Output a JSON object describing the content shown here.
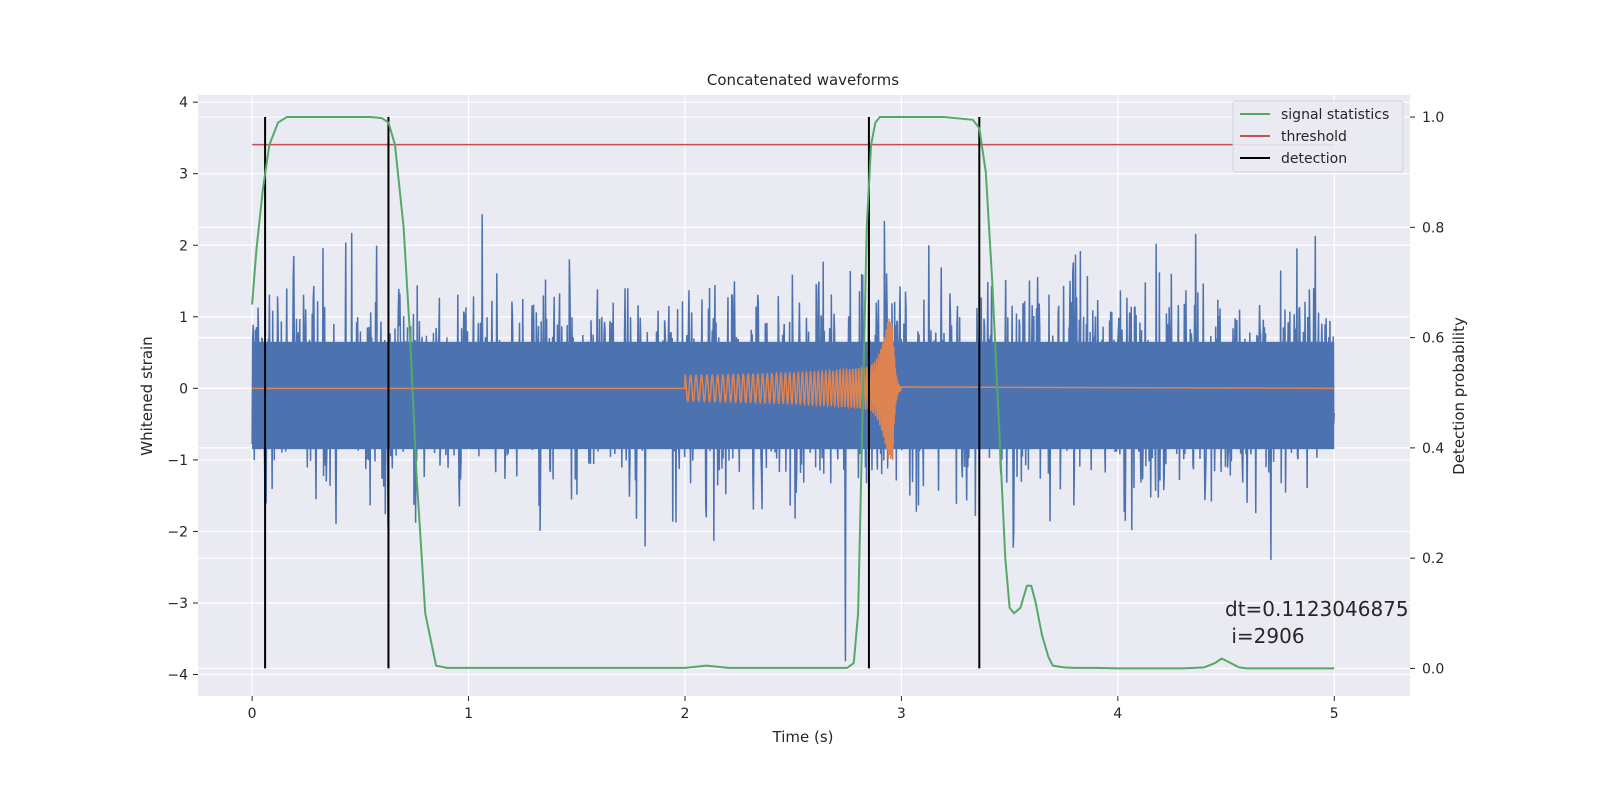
{
  "chart_data": {
    "type": "line",
    "title": "Concatenated waveforms",
    "xlabel": "Time (s)",
    "ylabel": "Whitened strain",
    "ylabel_right": "Detection probability",
    "xlim": [
      -0.25,
      5.35
    ],
    "ylim": [
      -4.3,
      4.1
    ],
    "ylim_right": [
      -0.05,
      1.04
    ],
    "xticks": [
      0,
      1,
      2,
      3,
      4,
      5
    ],
    "yticks": [
      -4,
      -3,
      -2,
      -1,
      0,
      1,
      2,
      3,
      4
    ],
    "yticks_right": [
      0.0,
      0.2,
      0.4,
      0.6,
      0.8,
      1.0
    ],
    "xtick_labels": [
      "0",
      "1",
      "2",
      "3",
      "4",
      "5"
    ],
    "ytick_labels": [
      "−4",
      "−3",
      "−2",
      "−1",
      "0",
      "1",
      "2",
      "3",
      "4"
    ],
    "ytick_labels_right": [
      "0.0",
      "0.2",
      "0.4",
      "0.6",
      "0.8",
      "1.0"
    ],
    "grid": true,
    "legend_position": "top-right",
    "colors": {
      "background": "#eaeaf2",
      "strain": "#4c72b0",
      "injection": "#dd8452",
      "signal_statistics": "#55a868",
      "threshold": "#c44e52",
      "detection": "#000000"
    },
    "series": [
      {
        "name": "",
        "role": "whitened-strain",
        "x_range": [
          0,
          5
        ],
        "envelope_amplitude": 3.6,
        "dense_band": [
          -0.85,
          0.65
        ]
      },
      {
        "name": "",
        "role": "injected-chirp",
        "x_start": 2.0,
        "x_merger": 2.96,
        "x_end": 3.0,
        "peak_amplitude": 1.0
      },
      {
        "name": "signal statistics",
        "axis": "right",
        "x": [
          0.0,
          0.02,
          0.05,
          0.08,
          0.12,
          0.16,
          0.2,
          0.3,
          0.4,
          0.5,
          0.55,
          0.6,
          0.63,
          0.66,
          0.7,
          0.73,
          0.76,
          0.8,
          0.85,
          0.9,
          1.0,
          1.5,
          2.0,
          2.05,
          2.1,
          2.15,
          2.2,
          2.5,
          2.75,
          2.78,
          2.8,
          2.82,
          2.84,
          2.86,
          2.88,
          2.9,
          3.0,
          3.2,
          3.33,
          3.36,
          3.39,
          3.42,
          3.45,
          3.48,
          3.5,
          3.52,
          3.55,
          3.58,
          3.6,
          3.62,
          3.65,
          3.68,
          3.7,
          3.75,
          3.8,
          3.9,
          4.0,
          4.3,
          4.4,
          4.45,
          4.48,
          4.52,
          4.56,
          4.6,
          5.0
        ],
        "y": [
          0.66,
          0.76,
          0.87,
          0.95,
          0.99,
          1.0,
          1.0,
          1.0,
          1.0,
          1.0,
          1.0,
          0.998,
          0.99,
          0.95,
          0.8,
          0.6,
          0.35,
          0.1,
          0.005,
          0.001,
          0.001,
          0.001,
          0.001,
          0.003,
          0.005,
          0.003,
          0.001,
          0.001,
          0.001,
          0.01,
          0.1,
          0.45,
          0.8,
          0.95,
          0.99,
          1.0,
          1.0,
          1.0,
          0.995,
          0.98,
          0.9,
          0.7,
          0.45,
          0.2,
          0.11,
          0.1,
          0.11,
          0.15,
          0.15,
          0.12,
          0.06,
          0.02,
          0.005,
          0.002,
          0.001,
          0.001,
          0.0,
          0.0,
          0.002,
          0.01,
          0.018,
          0.01,
          0.002,
          0.0,
          0.0
        ]
      },
      {
        "name": "threshold",
        "axis": "right",
        "y": 0.95,
        "x_range": [
          0,
          5
        ]
      },
      {
        "name": "detection",
        "axis": "right",
        "x": [
          0.06,
          0.63,
          2.85,
          3.36
        ],
        "y_range": [
          0.0,
          1.0
        ]
      }
    ],
    "annotation": {
      "line1": "dt=0.1123046875",
      "line2": " i=2906",
      "x": 4.5,
      "y": -3.0
    }
  }
}
